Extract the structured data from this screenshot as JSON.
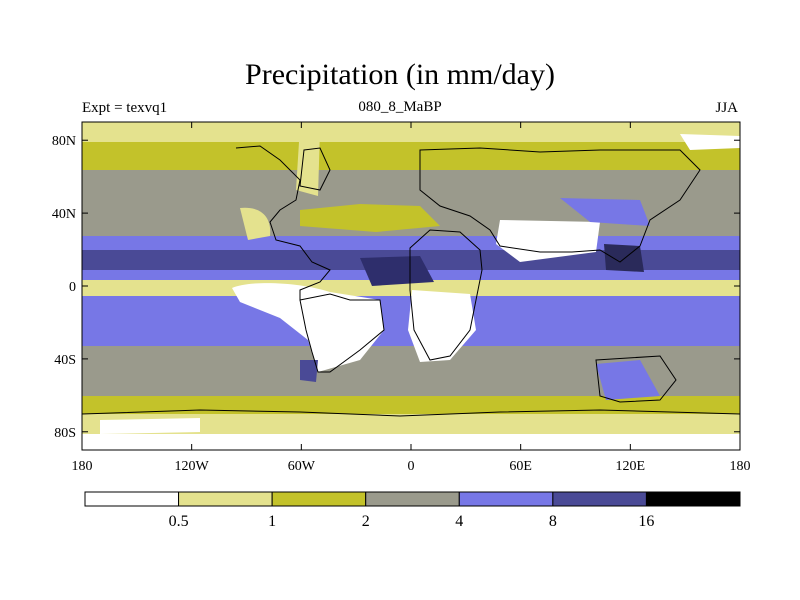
{
  "header": {
    "title": "Precipitation (in mm/day)",
    "experiment": "Expt = texvq1",
    "subtitle": "080_8_MaBP",
    "season": "JJA"
  },
  "map": {
    "projection": "cylindrical equidistant",
    "lon_range": [
      -180,
      180
    ],
    "lat_range": [
      -90,
      90
    ],
    "lat_ticks": [
      {
        "value": 80,
        "label": "80N"
      },
      {
        "value": 40,
        "label": "40N"
      },
      {
        "value": 0,
        "label": "0"
      },
      {
        "value": -40,
        "label": "40S"
      },
      {
        "value": -80,
        "label": "80S"
      }
    ],
    "lon_ticks": [
      {
        "value": -180,
        "label": "180"
      },
      {
        "value": -120,
        "label": "120W"
      },
      {
        "value": -60,
        "label": "60W"
      },
      {
        "value": 0,
        "label": "0"
      },
      {
        "value": 60,
        "label": "60E"
      },
      {
        "value": 120,
        "label": "120E"
      },
      {
        "value": 180,
        "label": "180"
      }
    ]
  },
  "colorbar": {
    "colors": [
      "#ffffff",
      "#e4e28e",
      "#c3c22a",
      "#9a9a8c",
      "#7777e6",
      "#4a4a96",
      "#000000"
    ],
    "thresholds": [
      "0.5",
      "1",
      "2",
      "4",
      "8",
      "16"
    ]
  }
}
